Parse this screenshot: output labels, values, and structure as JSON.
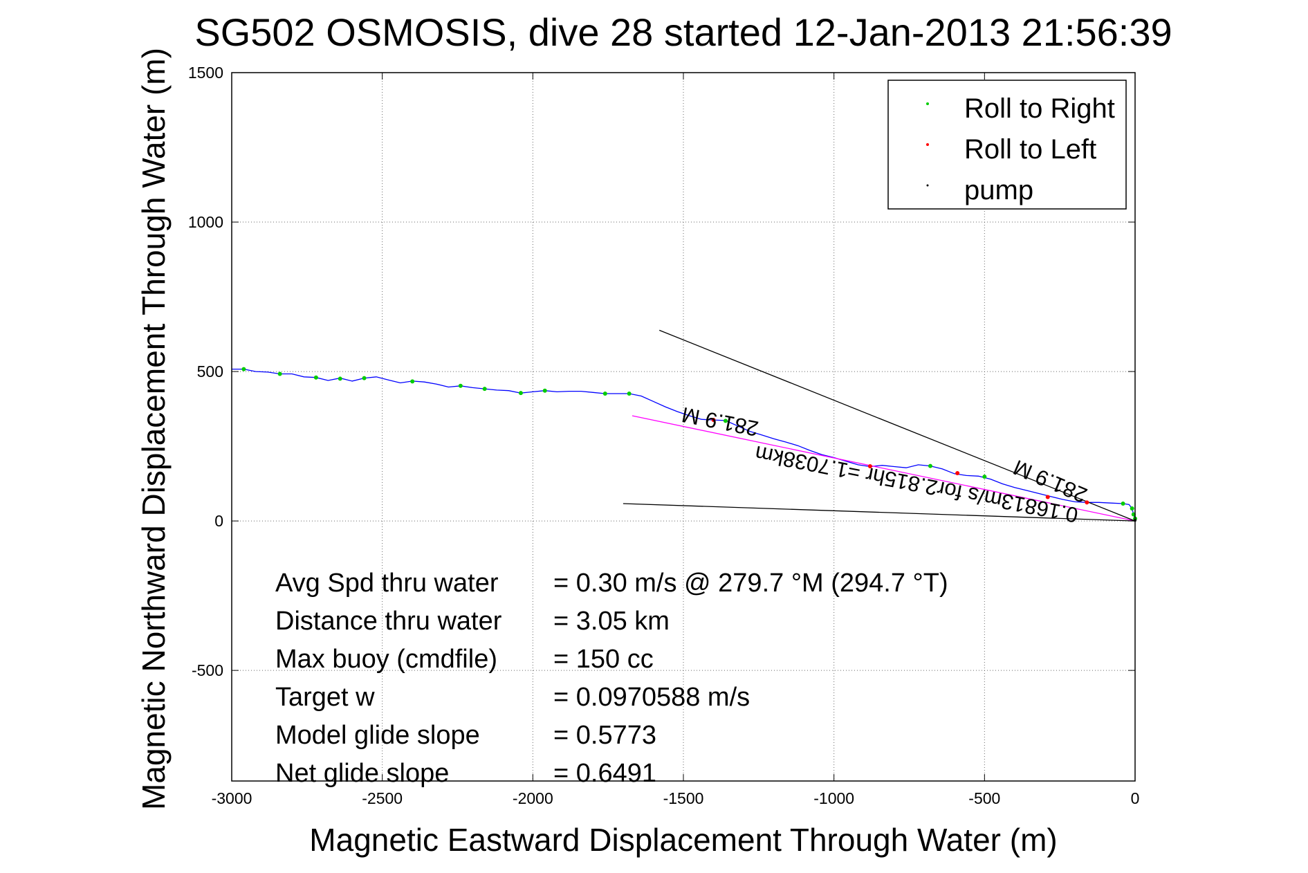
{
  "chart_data": {
    "type": "line",
    "title": "SG502 OSMOSIS, dive 28 started 12-Jan-2013 21:56:39",
    "xlabel": "Magnetic Eastward Displacement Through Water (m)",
    "ylabel": "Magnetic Northward Displacement Through Water (m)",
    "xlim": [
      -3000,
      0
    ],
    "ylim": [
      -870,
      1500
    ],
    "xticks": [
      -3000,
      -2500,
      -2000,
      -1500,
      -1000,
      -500,
      0
    ],
    "yticks": [
      1500,
      1000,
      500,
      0,
      -500
    ],
    "grid": true,
    "legend_position": "top-right",
    "legend": [
      {
        "label": "Roll to Right",
        "color": "#00cc00"
      },
      {
        "label": "Roll to Left",
        "color": "#ff0000"
      },
      {
        "label": "pump",
        "color": "#000000"
      }
    ],
    "series": [
      {
        "name": "track",
        "color": "#0000ff",
        "points": [
          [
            -3000,
            508
          ],
          [
            -2960,
            508
          ],
          [
            -2920,
            500
          ],
          [
            -2880,
            498
          ],
          [
            -2840,
            492
          ],
          [
            -2800,
            492
          ],
          [
            -2760,
            482
          ],
          [
            -2720,
            480
          ],
          [
            -2680,
            470
          ],
          [
            -2640,
            478
          ],
          [
            -2600,
            468
          ],
          [
            -2560,
            478
          ],
          [
            -2520,
            482
          ],
          [
            -2480,
            472
          ],
          [
            -2440,
            462
          ],
          [
            -2400,
            468
          ],
          [
            -2360,
            465
          ],
          [
            -2320,
            458
          ],
          [
            -2280,
            448
          ],
          [
            -2240,
            452
          ],
          [
            -2200,
            446
          ],
          [
            -2160,
            442
          ],
          [
            -2120,
            438
          ],
          [
            -2080,
            436
          ],
          [
            -2040,
            428
          ],
          [
            -2000,
            432
          ],
          [
            -1960,
            436
          ],
          [
            -1920,
            432
          ],
          [
            -1880,
            434
          ],
          [
            -1840,
            434
          ],
          [
            -1800,
            430
          ],
          [
            -1760,
            426
          ],
          [
            -1720,
            426
          ],
          [
            -1680,
            426
          ],
          [
            -1640,
            418
          ],
          [
            -1600,
            400
          ],
          [
            -1560,
            382
          ],
          [
            -1520,
            366
          ],
          [
            -1480,
            352
          ],
          [
            -1440,
            340
          ],
          [
            -1400,
            338
          ],
          [
            -1360,
            336
          ],
          [
            -1320,
            318
          ],
          [
            -1280,
            300
          ],
          [
            -1240,
            288
          ],
          [
            -1200,
            275
          ],
          [
            -1160,
            264
          ],
          [
            -1120,
            252
          ],
          [
            -1080,
            236
          ],
          [
            -1040,
            222
          ],
          [
            -1000,
            212
          ],
          [
            -960,
            200
          ],
          [
            -920,
            188
          ],
          [
            -880,
            182
          ],
          [
            -840,
            186
          ],
          [
            -800,
            182
          ],
          [
            -760,
            178
          ],
          [
            -720,
            188
          ],
          [
            -680,
            184
          ],
          [
            -640,
            174
          ],
          [
            -600,
            158
          ],
          [
            -560,
            152
          ],
          [
            -520,
            150
          ],
          [
            -480,
            140
          ],
          [
            -440,
            124
          ],
          [
            -400,
            112
          ],
          [
            -360,
            102
          ],
          [
            -320,
            92
          ],
          [
            -280,
            82
          ],
          [
            -240,
            72
          ],
          [
            -200,
            64
          ],
          [
            -160,
            62
          ],
          [
            -120,
            62
          ],
          [
            -80,
            60
          ],
          [
            -40,
            58
          ],
          [
            -20,
            55
          ],
          [
            -10,
            42
          ],
          [
            -5,
            22
          ],
          [
            0,
            8
          ]
        ]
      },
      {
        "name": "net",
        "color": "#ff00ff",
        "points": [
          [
            -1670,
            352
          ],
          [
            0,
            0
          ]
        ]
      },
      {
        "name": "upper",
        "color": "#000000",
        "points": [
          [
            -1580,
            638
          ],
          [
            0,
            0
          ]
        ]
      },
      {
        "name": "lower",
        "color": "#000000",
        "points": [
          [
            -1700,
            58
          ],
          [
            0,
            0
          ]
        ]
      }
    ],
    "markers": {
      "roll_right": [
        [
          -2960,
          508
        ],
        [
          -2840,
          492
        ],
        [
          -2720,
          480
        ],
        [
          -2640,
          476
        ],
        [
          -2560,
          478
        ],
        [
          -2400,
          467
        ],
        [
          -2240,
          452
        ],
        [
          -2160,
          442
        ],
        [
          -2040,
          428
        ],
        [
          -1960,
          436
        ],
        [
          -1760,
          426
        ],
        [
          -1680,
          426
        ],
        [
          -1360,
          335
        ],
        [
          -680,
          184
        ],
        [
          -500,
          148
        ],
        [
          -40,
          58
        ],
        [
          -10,
          42
        ],
        [
          -5,
          22
        ],
        [
          0,
          8
        ]
      ],
      "roll_left": [
        [
          -1400,
          338
        ],
        [
          -880,
          183
        ],
        [
          -590,
          160
        ],
        [
          -290,
          80
        ],
        [
          -160,
          62
        ]
      ],
      "pump": [
        [
          0,
          2
        ]
      ]
    },
    "annotations": {
      "speed_line": "0.16813m/s for2.815hr =1.7038km",
      "heading_a": "281.9 M",
      "heading_b": "281.9 M"
    },
    "stats": [
      {
        "label": "Avg Spd thru water",
        "value": "=  0.30 m/s @ 279.7 °M (294.7 °T)"
      },
      {
        "label": "Distance thru water",
        "value": "=  3.05 km"
      },
      {
        "label": "Max buoy (cmdfile)",
        "value": "= 150 cc"
      },
      {
        "label": "Target w",
        "value": "= 0.0970588 m/s"
      },
      {
        "label": "Model glide slope",
        "value": "= 0.5773"
      },
      {
        "label": "Net glide slope",
        "value": "= 0.6491"
      }
    ]
  }
}
